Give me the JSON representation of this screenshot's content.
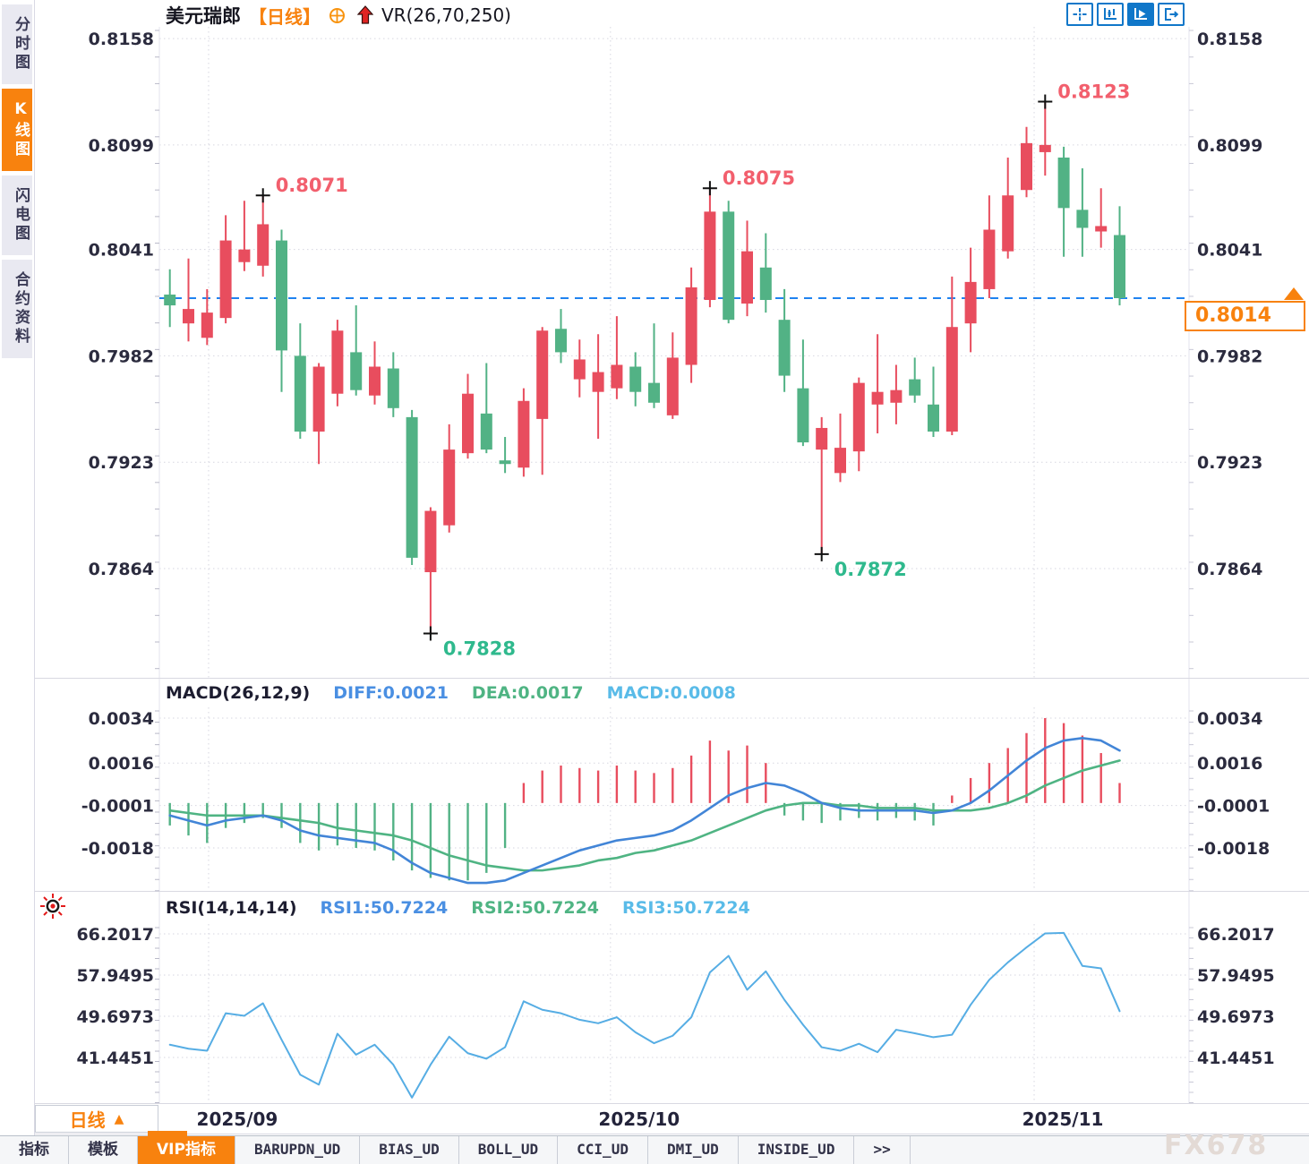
{
  "app": {
    "watermark": "FX678"
  },
  "colors": {
    "up": "#e84d5e",
    "down": "#52b285",
    "accent": "#f8820e",
    "diff_line": "#4285d7",
    "dea_line": "#4fb483",
    "rsi_line": "#56ade4",
    "dashed_price_line": "#1f83f0",
    "grid": "#d6d6e0",
    "axis_text": "#2b2b3e",
    "annotation_high": "#f25f6d",
    "annotation_low": "#2fb98d"
  },
  "sidebar": {
    "tabs": [
      {
        "label": "分时图",
        "active": false
      },
      {
        "label": "K线图",
        "active": true
      },
      {
        "label": "闪电图",
        "active": false
      },
      {
        "label": "合约资料",
        "active": false
      }
    ]
  },
  "header": {
    "symbol": "美元瑞郎",
    "period": "【日线】",
    "indicator": "VR(26,70,250)",
    "tool_icons": [
      {
        "name": "pan-crosshair-icon",
        "active": false
      },
      {
        "name": "axis-candle-icon",
        "active": false
      },
      {
        "name": "axis-play-icon",
        "active": true
      },
      {
        "name": "exit-right-icon",
        "active": false
      }
    ],
    "title_icons": [
      "target-circle-plus-icon",
      "red-up-arrow-icon"
    ]
  },
  "price_tag": {
    "value": "0.8014"
  },
  "xaxis": {
    "period_button": "日线",
    "months": [
      {
        "label": "2025/09",
        "index": 2.08
      },
      {
        "label": "2025/10",
        "index": 23.66
      },
      {
        "label": "2025/11",
        "index": 46.41
      }
    ]
  },
  "macd_header": {
    "name": "MACD(26,12,9)",
    "diff": "DIFF:0.0021",
    "dea": "DEA:0.0017",
    "macd": "MACD:0.0008"
  },
  "rsi_header": {
    "name": "RSI(14,14,14)",
    "rsi1": "RSI1:50.7224",
    "rsi2": "RSI2:50.7224",
    "rsi3": "RSI3:50.7224"
  },
  "bottom_tabs": {
    "items": [
      {
        "label": "指标",
        "active": false,
        "mono": false
      },
      {
        "label": "模板",
        "active": false,
        "mono": false
      },
      {
        "label": "VIP指标",
        "active": true,
        "mono": false
      },
      {
        "label": "BARUPDN_UD",
        "active": false,
        "mono": true
      },
      {
        "label": "BIAS_UD",
        "active": false,
        "mono": true
      },
      {
        "label": "BOLL_UD",
        "active": false,
        "mono": true
      },
      {
        "label": "CCI_UD",
        "active": false,
        "mono": true
      },
      {
        "label": "DMI_UD",
        "active": false,
        "mono": true
      },
      {
        "label": "INSIDE_UD",
        "active": false,
        "mono": true
      },
      {
        "label": ">>",
        "active": false,
        "mono": true
      }
    ]
  },
  "chart_data": [
    {
      "type": "candlestick",
      "title": "美元瑞郎 【日线】",
      "indicator_label": "VR(26,70,250)",
      "y_ticks": [
        "0.8158",
        "0.8099",
        "0.8041",
        "0.7982",
        "0.7923",
        "0.7864"
      ],
      "ylim": [
        0.78034,
        0.81645
      ],
      "current_price": 0.8014,
      "annotations": [
        {
          "text": "0.8071",
          "index": 5,
          "kind": "high"
        },
        {
          "text": "0.7828",
          "index": 14,
          "kind": "low"
        },
        {
          "text": "0.8075",
          "index": 29,
          "kind": "high"
        },
        {
          "text": "0.7872",
          "index": 35,
          "kind": "low"
        },
        {
          "text": "0.8123",
          "index": 47,
          "kind": "high"
        }
      ],
      "candles": [
        [
          0.8016,
          0.803,
          0.7998,
          0.801
        ],
        [
          0.8,
          0.8036,
          0.799,
          0.8008
        ],
        [
          0.7992,
          0.8019,
          0.7988,
          0.8006
        ],
        [
          0.8003,
          0.806,
          0.8,
          0.8046
        ],
        [
          0.8034,
          0.8068,
          0.8029,
          0.8041
        ],
        [
          0.8032,
          0.8071,
          0.8026,
          0.8055
        ],
        [
          0.8046,
          0.8052,
          0.7962,
          0.7985
        ],
        [
          0.7982,
          0.8,
          0.7936,
          0.794
        ],
        [
          0.794,
          0.7978,
          0.7922,
          0.7976
        ],
        [
          0.7961,
          0.8002,
          0.7954,
          0.7996
        ],
        [
          0.7984,
          0.801,
          0.796,
          0.7963
        ],
        [
          0.796,
          0.799,
          0.7955,
          0.7976
        ],
        [
          0.7975,
          0.7984,
          0.7948,
          0.7953
        ],
        [
          0.7948,
          0.7952,
          0.7866,
          0.787
        ],
        [
          0.7862,
          0.7898,
          0.7828,
          0.7896
        ],
        [
          0.7888,
          0.7944,
          0.7884,
          0.793
        ],
        [
          0.7928,
          0.7972,
          0.7925,
          0.7961
        ],
        [
          0.795,
          0.7978,
          0.7928,
          0.793
        ],
        [
          0.7924,
          0.7937,
          0.7917,
          0.7922
        ],
        [
          0.792,
          0.7964,
          0.7915,
          0.7957
        ],
        [
          0.7947,
          0.7998,
          0.7916,
          0.7996
        ],
        [
          0.7997,
          0.8008,
          0.7978,
          0.7984
        ],
        [
          0.7969,
          0.7991,
          0.7959,
          0.798
        ],
        [
          0.7962,
          0.7994,
          0.7936,
          0.7973
        ],
        [
          0.7964,
          0.8004,
          0.7958,
          0.7977
        ],
        [
          0.7976,
          0.7984,
          0.7954,
          0.7962
        ],
        [
          0.7967,
          0.8,
          0.7953,
          0.7956
        ],
        [
          0.7949,
          0.7995,
          0.7947,
          0.7981
        ],
        [
          0.7977,
          0.8031,
          0.7967,
          0.802
        ],
        [
          0.8013,
          0.8075,
          0.8009,
          0.8062
        ],
        [
          0.8062,
          0.8068,
          0.8,
          0.8002
        ],
        [
          0.8011,
          0.8057,
          0.8004,
          0.804
        ],
        [
          0.8031,
          0.805,
          0.8006,
          0.8013
        ],
        [
          0.8002,
          0.8019,
          0.7962,
          0.7971
        ],
        [
          0.7964,
          0.7991,
          0.7932,
          0.7934
        ],
        [
          0.793,
          0.7948,
          0.7872,
          0.7942
        ],
        [
          0.7917,
          0.795,
          0.7912,
          0.7931
        ],
        [
          0.7929,
          0.797,
          0.7918,
          0.7967
        ],
        [
          0.7955,
          0.7994,
          0.7939,
          0.7962
        ],
        [
          0.7956,
          0.7977,
          0.7944,
          0.7963
        ],
        [
          0.7969,
          0.7981,
          0.7956,
          0.796
        ],
        [
          0.7955,
          0.7976,
          0.7937,
          0.794
        ],
        [
          0.794,
          0.8026,
          0.7938,
          0.7998
        ],
        [
          0.8,
          0.8042,
          0.7984,
          0.8023
        ],
        [
          0.8019,
          0.8071,
          0.8014,
          0.8052
        ],
        [
          0.804,
          0.8092,
          0.8036,
          0.8071
        ],
        [
          0.8074,
          0.8109,
          0.807,
          0.81
        ],
        [
          0.8095,
          0.8123,
          0.8082,
          0.8099
        ],
        [
          0.8092,
          0.8098,
          0.8037,
          0.8064
        ],
        [
          0.8063,
          0.8086,
          0.8037,
          0.8053
        ],
        [
          0.8051,
          0.8075,
          0.8042,
          0.8054
        ],
        [
          0.8049,
          0.8065,
          0.801,
          0.8014
        ]
      ]
    },
    {
      "type": "bar",
      "name": "MACD(26,12,9)",
      "y_ticks": [
        "0.0034",
        "0.0016",
        "-0.0001",
        "-0.0018"
      ],
      "ylim": [
        -0.00352,
        0.00383
      ],
      "diff": [
        -0.0005,
        -0.0007,
        -0.0009,
        -0.0007,
        -0.0006,
        -0.0005,
        -0.0007,
        -0.0011,
        -0.0013,
        -0.0014,
        -0.0015,
        -0.0016,
        -0.0019,
        -0.0024,
        -0.0028,
        -0.003,
        -0.0032,
        -0.0032,
        -0.0031,
        -0.0028,
        -0.0025,
        -0.0022,
        -0.0019,
        -0.0017,
        -0.0015,
        -0.0014,
        -0.0013,
        -0.0011,
        -0.0007,
        -0.0002,
        0.0003,
        0.0006,
        0.0008,
        0.0007,
        0.0004,
        0.0,
        -0.0002,
        -0.0003,
        -0.0003,
        -0.0003,
        -0.0003,
        -0.0004,
        -0.0003,
        0.0,
        0.0005,
        0.0011,
        0.0017,
        0.0022,
        0.0025,
        0.0026,
        0.0025,
        0.0021
      ],
      "dea": [
        -0.0003,
        -0.0004,
        -0.0005,
        -0.0005,
        -0.0005,
        -0.0005,
        -0.0006,
        -0.0007,
        -0.0008,
        -0.001,
        -0.0011,
        -0.0012,
        -0.0013,
        -0.0015,
        -0.0018,
        -0.0021,
        -0.0023,
        -0.0025,
        -0.0026,
        -0.0027,
        -0.0027,
        -0.0026,
        -0.0025,
        -0.0023,
        -0.0022,
        -0.002,
        -0.0019,
        -0.0017,
        -0.0015,
        -0.0012,
        -0.0009,
        -0.0006,
        -0.0003,
        -0.0001,
        0.0,
        0.0,
        -0.0001,
        -0.0001,
        -0.0002,
        -0.0002,
        -0.0002,
        -0.0003,
        -0.0003,
        -0.0003,
        -0.0002,
        0.0,
        0.0003,
        0.0007,
        0.001,
        0.0013,
        0.0015,
        0.0017
      ],
      "hist": [
        -0.0009,
        -0.0013,
        -0.0016,
        -0.001,
        -0.0008,
        -0.0006,
        -0.001,
        -0.0016,
        -0.0019,
        -0.0017,
        -0.0018,
        -0.0019,
        -0.0023,
        -0.0027,
        -0.003,
        -0.0031,
        -0.0031,
        -0.0028,
        -0.0018,
        0.0008,
        0.0013,
        0.0015,
        0.0014,
        0.0013,
        0.0015,
        0.0013,
        0.0012,
        0.0014,
        0.0019,
        0.0025,
        0.0021,
        0.0023,
        0.0016,
        -0.0005,
        -0.0007,
        -0.0008,
        -0.0007,
        -0.0006,
        -0.0007,
        -0.0006,
        -0.0007,
        -0.0009,
        0.0003,
        0.001,
        0.0016,
        0.0022,
        0.0028,
        0.0034,
        0.0032,
        0.0027,
        0.002,
        0.0008
      ]
    },
    {
      "type": "line",
      "name": "RSI(14,14,14)",
      "y_ticks": [
        "66.2017",
        "57.9495",
        "49.6973",
        "41.4451"
      ],
      "ylim": [
        32.3,
        68.18
      ],
      "values": [
        44.0,
        43.2,
        42.8,
        50.3,
        49.8,
        52.3,
        45.0,
        38.0,
        36.0,
        46.2,
        42.0,
        44.0,
        40.0,
        33.4,
        40.0,
        45.6,
        42.3,
        41.2,
        43.5,
        52.7,
        51.0,
        50.3,
        49.0,
        48.3,
        49.5,
        46.5,
        44.3,
        45.8,
        49.5,
        58.5,
        61.8,
        55.0,
        58.7,
        53.0,
        48.0,
        43.5,
        42.8,
        44.2,
        42.5,
        47.0,
        46.3,
        45.5,
        46.0,
        52.0,
        57.0,
        60.5,
        63.5,
        66.3,
        66.4,
        59.8,
        59.3,
        50.7224
      ]
    }
  ]
}
